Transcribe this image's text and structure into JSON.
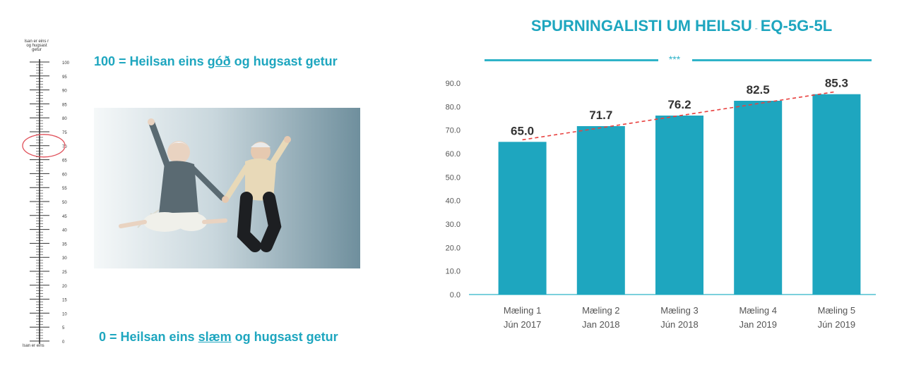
{
  "scale": {
    "top_label": "lsan er eins r og hugsast getur",
    "bottom_label": "lsan er eins",
    "ticks": [
      "100",
      "95",
      "90",
      "85",
      "80",
      "75",
      "70",
      "65",
      "60",
      "55",
      "50",
      "45",
      "40",
      "35",
      "30",
      "25",
      "20",
      "15",
      "10",
      "5",
      "0"
    ],
    "highlight_value": 70,
    "highlight_color": "#e0505a"
  },
  "left": {
    "top_prefix": "100 = Heilsan eins ",
    "top_emph": "góð",
    "top_suffix": " og hugsast getur",
    "bottom_prefix": "0 = Heilsan eins ",
    "bottom_emph": "slæm",
    "bottom_suffix": " og hugsast getur",
    "accent_color": "#1ea6bf"
  },
  "header": {
    "title_main": "SPURNINGALISTI UM HEILSU",
    "title_sep": "-",
    "title_code": "EQ-5G-5L",
    "stars": "***"
  },
  "chart_data": {
    "type": "bar",
    "categories": [
      [
        "Mæling 1",
        "Jún 2017"
      ],
      [
        "Mæling 2",
        "Jan 2018"
      ],
      [
        "Mæling 3",
        "Jún 2018"
      ],
      [
        "Mæling 4",
        "Jan 2019"
      ],
      [
        "Mæling 5",
        "Jún 2019"
      ]
    ],
    "values": [
      65.0,
      71.7,
      76.2,
      82.5,
      85.3
    ],
    "value_labels": [
      "65.0",
      "71.7",
      "76.2",
      "82.5",
      "85.3"
    ],
    "ylim": [
      0,
      90
    ],
    "yticks": [
      "0.0",
      "10.0",
      "20.0",
      "30.0",
      "40.0",
      "50.0",
      "60.0",
      "70.0",
      "80.0",
      "90.0"
    ],
    "trendline": true,
    "bar_color": "#1ea6bf",
    "trend_color": "#e8413f",
    "grid": false
  }
}
